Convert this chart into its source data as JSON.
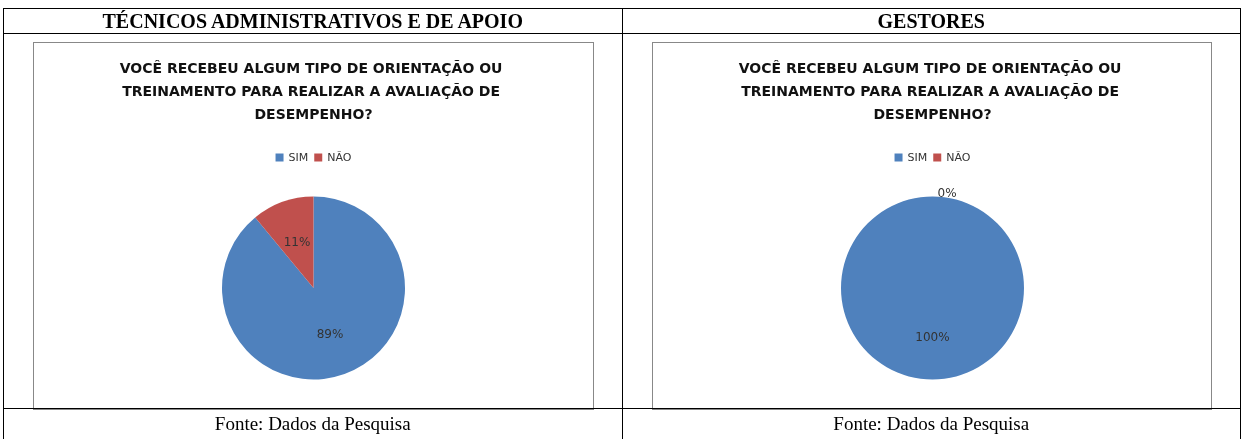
{
  "chart_data": [
    {
      "type": "pie",
      "title": "TÉCNICOS ADMINISTRATIVOS E DE APOIO",
      "subtitle": "VOCÊ RECEBEU ALGUM TIPO DE ORIENTAÇÃO OU TREINAMENTO PARA REALIZAR A AVALIAÇÃO DE DESEMPENHO?",
      "categories": [
        "SIM",
        "NÃO"
      ],
      "values": [
        89,
        11
      ],
      "colors": [
        "#4f81bd",
        "#c0504d"
      ],
      "value_labels": [
        "89%",
        "11%"
      ],
      "legend": "top",
      "annotations": [
        "Fonte: Dados da Pesquisa"
      ]
    },
    {
      "type": "pie",
      "title": "GESTORES",
      "subtitle": "VOCÊ RECEBEU ALGUM TIPO DE ORIENTAÇÃO OU TREINAMENTO PARA REALIZAR A AVALIAÇÃO DE DESEMPENHO?",
      "categories": [
        "SIM",
        "NÃO"
      ],
      "values": [
        100,
        0
      ],
      "colors": [
        "#4f81bd",
        "#c0504d"
      ],
      "value_labels": [
        "100%",
        "0%"
      ],
      "legend": "top",
      "annotations": [
        "Fonte: Dados da Pesquisa"
      ]
    }
  ]
}
